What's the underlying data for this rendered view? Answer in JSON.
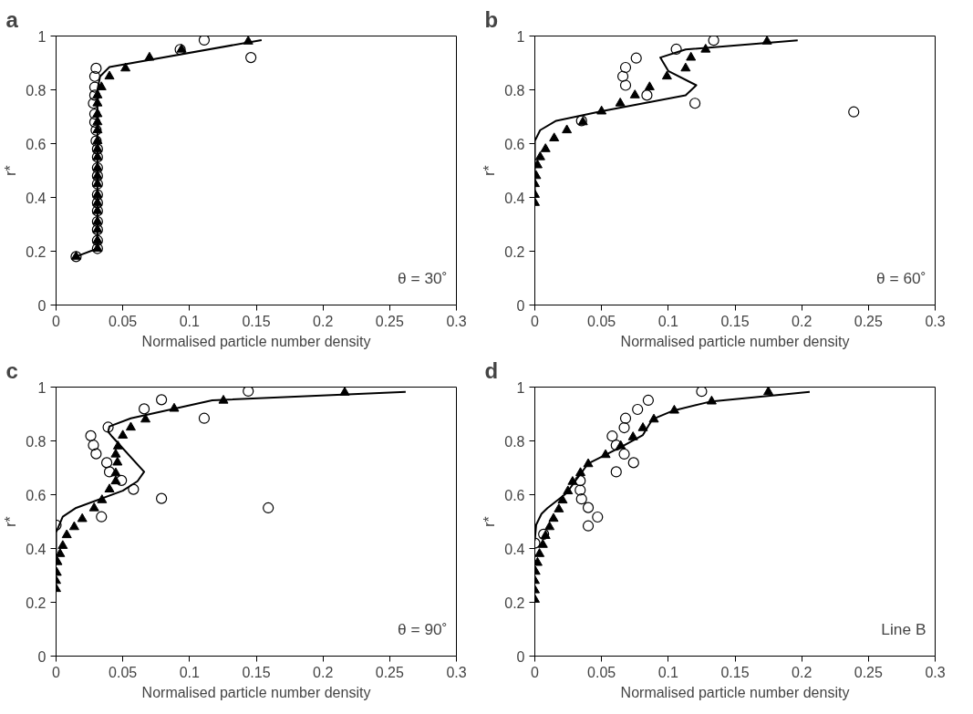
{
  "chart_data": [
    {
      "type": "scatter",
      "title": "a",
      "xlabel": "Normalised particle number density",
      "ylabel": "r*",
      "annotations": [
        "θ = 30˚"
      ],
      "xlim": [
        0,
        0.3
      ],
      "xticks": [
        0,
        0.05,
        0.1,
        0.15,
        0.2,
        0.25,
        0.3
      ],
      "ylim": [
        0,
        1
      ],
      "yticks": [
        0,
        0.2,
        0.4,
        0.6,
        0.8,
        1
      ],
      "grid": false,
      "series": [
        {
          "type": "line",
          "color": "#000000",
          "x": [
            0.015,
            0.031,
            0.031,
            0.033,
            0.04,
            0.154
          ],
          "values": [
            0.18,
            0.21,
            0.8,
            0.85,
            0.885,
            0.985
          ]
        },
        {
          "marker": "circle",
          "color": "#000000",
          "x": [
            0.015,
            0.031,
            0.031,
            0.031,
            0.031,
            0.031,
            0.031,
            0.031,
            0.031,
            0.031,
            0.031,
            0.031,
            0.031,
            0.03,
            0.03,
            0.029,
            0.029,
            0.028,
            0.029,
            0.029,
            0.029,
            0.03,
            0.093,
            0.111,
            0.146
          ],
          "values": [
            0.18,
            0.21,
            0.24,
            0.28,
            0.31,
            0.35,
            0.38,
            0.41,
            0.45,
            0.48,
            0.51,
            0.55,
            0.58,
            0.61,
            0.65,
            0.68,
            0.71,
            0.75,
            0.78,
            0.81,
            0.85,
            0.88,
            0.95,
            0.985,
            0.92
          ]
        },
        {
          "marker": "triangle",
          "color": "#000000",
          "x": [
            0.015,
            0.031,
            0.031,
            0.031,
            0.031,
            0.031,
            0.031,
            0.031,
            0.031,
            0.031,
            0.031,
            0.031,
            0.031,
            0.031,
            0.031,
            0.031,
            0.031,
            0.031,
            0.031,
            0.034,
            0.04,
            0.052,
            0.07,
            0.094,
            0.144
          ],
          "values": [
            0.18,
            0.21,
            0.24,
            0.28,
            0.31,
            0.35,
            0.38,
            0.41,
            0.45,
            0.48,
            0.51,
            0.55,
            0.58,
            0.61,
            0.65,
            0.68,
            0.71,
            0.75,
            0.78,
            0.81,
            0.85,
            0.88,
            0.92,
            0.95,
            0.98
          ]
        }
      ]
    },
    {
      "type": "scatter",
      "title": "b",
      "xlabel": "Normalised particle number density",
      "ylabel": "r*",
      "annotations": [
        "θ = 60˚"
      ],
      "xlim": [
        0,
        0.3
      ],
      "xticks": [
        0,
        0.05,
        0.1,
        0.15,
        0.2,
        0.25,
        0.3
      ],
      "ylim": [
        0,
        1
      ],
      "yticks": [
        0,
        0.2,
        0.4,
        0.6,
        0.8,
        1
      ],
      "grid": false,
      "series": [
        {
          "type": "line",
          "color": "#000000",
          "x": [
            0,
            0,
            0.004,
            0.016,
            0.05,
            0.113,
            0.121,
            0.1,
            0.094,
            0.113,
            0.197
          ],
          "values": [
            0.42,
            0.61,
            0.65,
            0.685,
            0.72,
            0.78,
            0.817,
            0.87,
            0.92,
            0.95,
            0.984
          ]
        },
        {
          "marker": "circle",
          "color": "#000000",
          "x": [
            0.035,
            0.084,
            0.068,
            0.066,
            0.068,
            0.076,
            0.106,
            0.134,
            0.12,
            0.239
          ],
          "values": [
            0.685,
            0.78,
            0.817,
            0.85,
            0.883,
            0.918,
            0.951,
            0.984,
            0.75,
            0.718
          ]
        },
        {
          "marker": "triangle",
          "color": "#000000",
          "x": [
            0,
            0,
            0,
            0.001,
            0.002,
            0.004,
            0.008,
            0.0145,
            0.024,
            0.036,
            0.05,
            0.064,
            0.075,
            0.086,
            0.099,
            0.113,
            0.117,
            0.128,
            0.174
          ],
          "values": [
            0.38,
            0.41,
            0.45,
            0.48,
            0.52,
            0.55,
            0.58,
            0.62,
            0.65,
            0.68,
            0.72,
            0.75,
            0.78,
            0.81,
            0.85,
            0.88,
            0.92,
            0.95,
            0.98
          ]
        }
      ]
    },
    {
      "type": "scatter",
      "title": "c",
      "xlabel": "Normalised particle number density",
      "ylabel": "r*",
      "annotations": [
        "θ = 90˚"
      ],
      "xlim": [
        0,
        0.3
      ],
      "xticks": [
        0,
        0.05,
        0.1,
        0.15,
        0.2,
        0.25,
        0.3
      ],
      "ylim": [
        0,
        1
      ],
      "yticks": [
        0,
        0.2,
        0.4,
        0.6,
        0.8,
        1
      ],
      "grid": false,
      "series": [
        {
          "type": "line",
          "color": "#000000",
          "x": [
            0,
            0,
            0.005,
            0.015,
            0.05,
            0.061,
            0.066,
            0.042,
            0.039,
            0.04,
            0.056,
            0.117,
            0.262
          ],
          "values": [
            0.384,
            0.46,
            0.518,
            0.551,
            0.615,
            0.65,
            0.685,
            0.816,
            0.834,
            0.854,
            0.884,
            0.951,
            0.982
          ]
        },
        {
          "marker": "circle",
          "color": "#000000",
          "x": [
            0,
            0.034,
            0.079,
            0.058,
            0.049,
            0.04,
            0.038,
            0.03,
            0.028,
            0.026,
            0.039,
            0.066,
            0.079,
            0.111,
            0.144,
            0.159
          ],
          "values": [
            0.487,
            0.518,
            0.586,
            0.62,
            0.653,
            0.685,
            0.719,
            0.752,
            0.784,
            0.819,
            0.851,
            0.919,
            0.953,
            0.884,
            0.985,
            0.551
          ]
        },
        {
          "marker": "triangle",
          "color": "#000000",
          "x": [
            0,
            0,
            0.0005,
            0.001,
            0.003,
            0.005,
            0.008,
            0.0136,
            0.0196,
            0.0285,
            0.0344,
            0.04,
            0.0447,
            0.0447,
            0.046,
            0.0447,
            0.0464,
            0.05,
            0.056,
            0.067,
            0.0885,
            0.1254,
            0.2163
          ],
          "values": [
            0.25,
            0.28,
            0.31,
            0.35,
            0.38,
            0.41,
            0.45,
            0.48,
            0.51,
            0.55,
            0.58,
            0.62,
            0.65,
            0.68,
            0.72,
            0.75,
            0.78,
            0.82,
            0.85,
            0.88,
            0.92,
            0.95,
            0.98
          ]
        }
      ]
    },
    {
      "type": "scatter",
      "title": "d",
      "xlabel": "Normalised particle number density",
      "ylabel": "r*",
      "annotations": [
        "Line B"
      ],
      "xlim": [
        0,
        0.3
      ],
      "xticks": [
        0,
        0.05,
        0.1,
        0.15,
        0.2,
        0.25,
        0.3
      ],
      "ylim": [
        0,
        1
      ],
      "yticks": [
        0,
        0.2,
        0.4,
        0.6,
        0.8,
        1
      ],
      "grid": false,
      "series": [
        {
          "type": "line",
          "color": "#000000",
          "x": [
            0,
            0.001,
            0.005,
            0.0094,
            0.0236,
            0.04,
            0.066,
            0.081,
            0.088,
            0.104,
            0.1325,
            0.206
          ],
          "values": [
            0.43,
            0.488,
            0.529,
            0.55,
            0.605,
            0.716,
            0.781,
            0.822,
            0.88,
            0.913,
            0.947,
            0.982
          ]
        },
        {
          "marker": "circle",
          "color": "#000000",
          "x": [
            0,
            0.0066,
            0.04,
            0.047,
            0.04,
            0.035,
            0.034,
            0.034,
            0.061,
            0.074,
            0.067,
            0.061,
            0.058,
            0.067,
            0.068,
            0.077,
            0.085,
            0.125
          ],
          "values": [
            0.42,
            0.453,
            0.484,
            0.517,
            0.552,
            0.584,
            0.617,
            0.652,
            0.685,
            0.719,
            0.751,
            0.784,
            0.818,
            0.849,
            0.884,
            0.917,
            0.951,
            0.984
          ]
        },
        {
          "marker": "triangle",
          "color": "#000000",
          "x": [
            0,
            0,
            0,
            0.0005,
            0.002,
            0.0035,
            0.006,
            0.008,
            0.011,
            0.014,
            0.018,
            0.0208,
            0.0248,
            0.0283,
            0.0342,
            0.04,
            0.053,
            0.0644,
            0.0736,
            0.081,
            0.0892,
            0.1045,
            0.1325,
            0.175
          ],
          "values": [
            0.21,
            0.245,
            0.28,
            0.314,
            0.347,
            0.38,
            0.414,
            0.447,
            0.48,
            0.511,
            0.546,
            0.579,
            0.613,
            0.648,
            0.681,
            0.714,
            0.748,
            0.781,
            0.814,
            0.848,
            0.88,
            0.913,
            0.947,
            0.982
          ]
        }
      ]
    }
  ]
}
